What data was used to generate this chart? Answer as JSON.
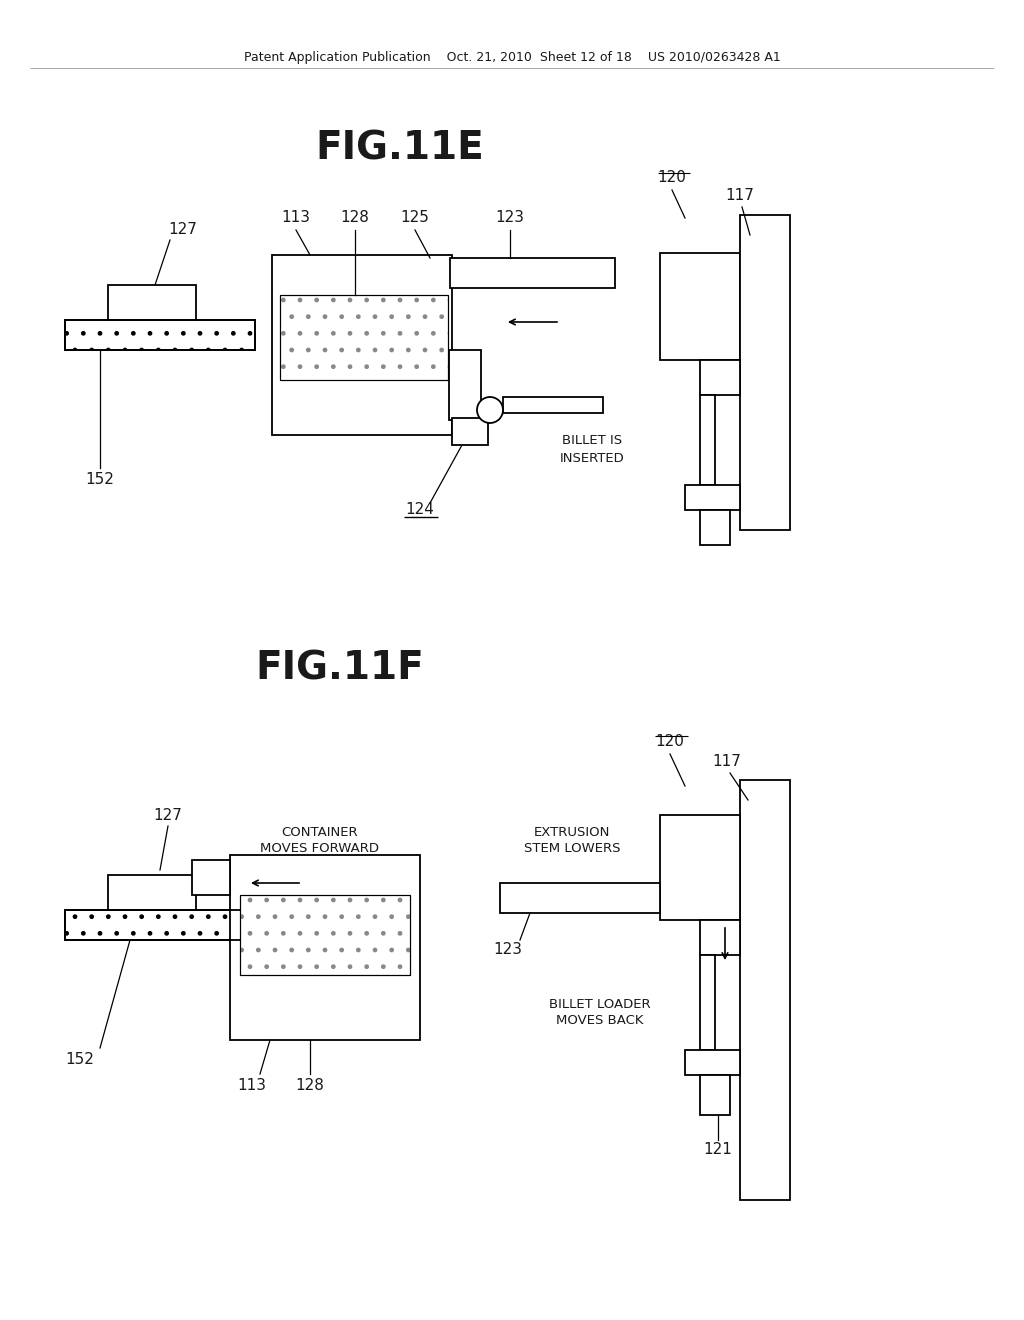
{
  "header": "Patent Application Publication    Oct. 21, 2010  Sheet 12 of 18    US 2010/0263428 A1",
  "fig_e_title": "FIG.11E",
  "fig_f_title": "FIG.11F",
  "bg": "#ffffff",
  "lc": "#1a1a1a",
  "fig_title_size": 28,
  "label_size": 11,
  "annot_size": 9.5,
  "header_size": 9
}
